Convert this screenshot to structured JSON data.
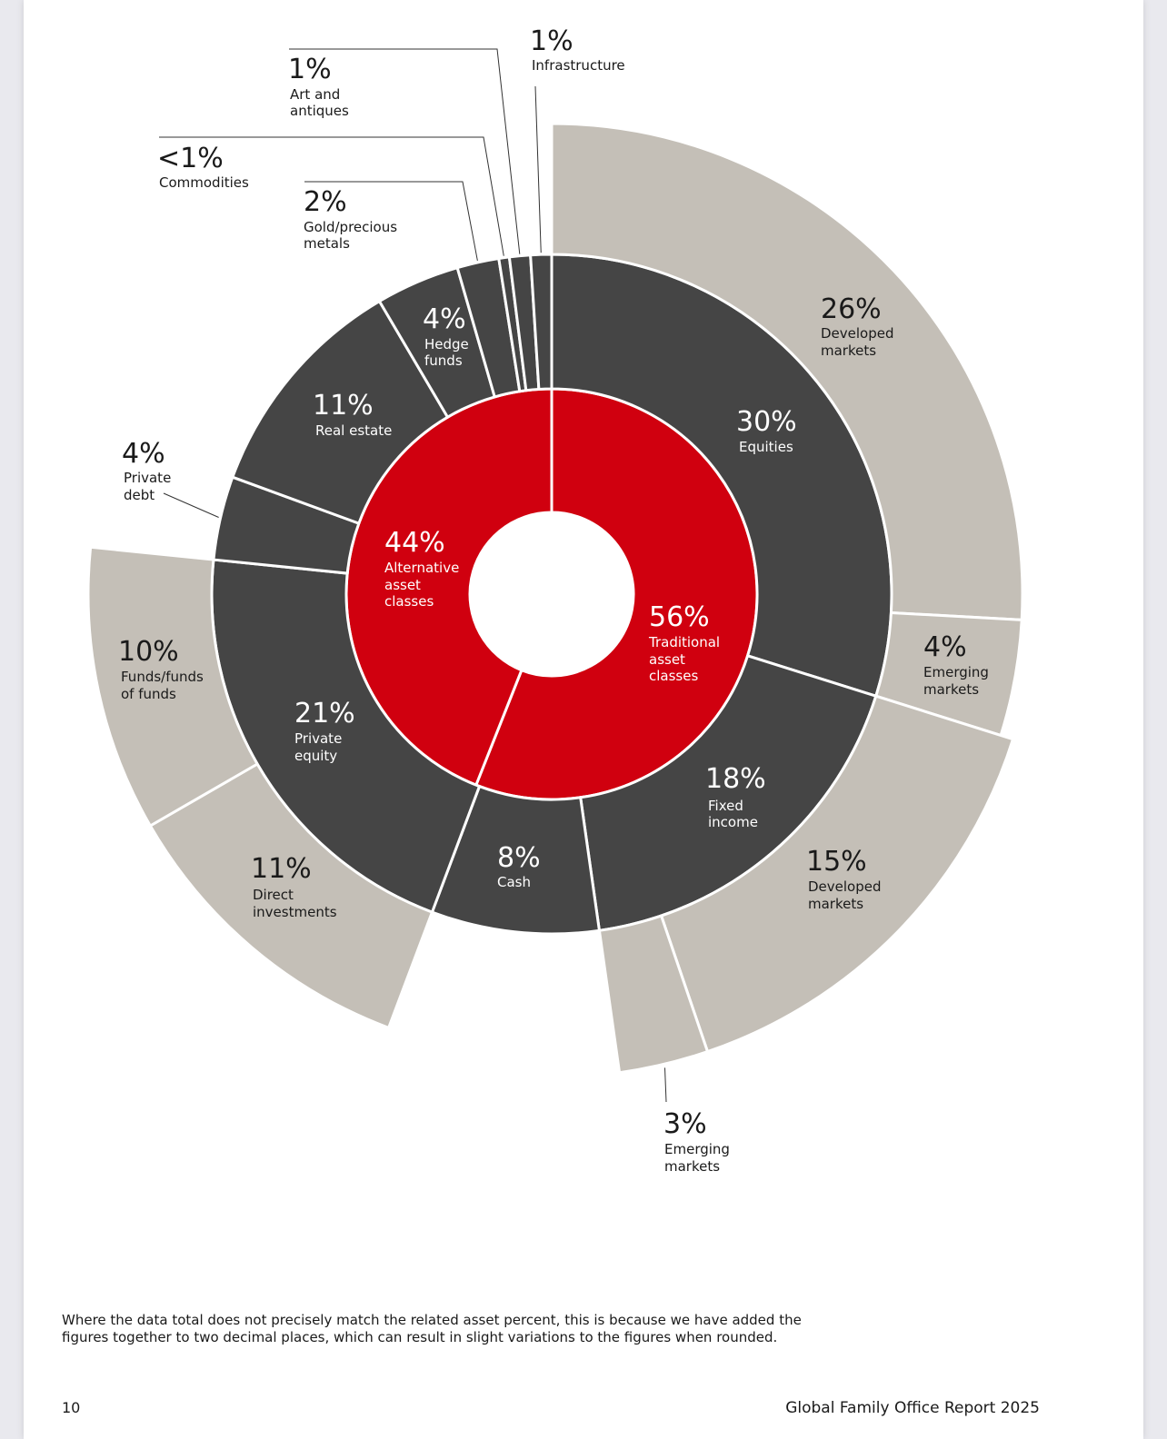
{
  "colors": {
    "center": "#d0000f",
    "ring": "#454545",
    "outer": "#c4bfb7",
    "separator": "#ffffff",
    "leader": "#333333"
  },
  "chart_data": {
    "type": "sunburst",
    "inner": [
      {
        "id": "trad",
        "label": "Traditional asset classes",
        "pct": "56%",
        "value": 56
      },
      {
        "id": "alt",
        "label": "Alternative asset classes",
        "pct": "44%",
        "value": 44
      }
    ],
    "middle": [
      {
        "id": "equities",
        "parent": "trad",
        "label": "Equities",
        "pct": "30%",
        "value": 30
      },
      {
        "id": "fixed",
        "parent": "trad",
        "label": "Fixed income",
        "pct": "18%",
        "value": 18
      },
      {
        "id": "cash",
        "parent": "trad",
        "label": "Cash",
        "pct": "8%",
        "value": 8
      },
      {
        "id": "pe",
        "parent": "alt",
        "label": "Private equity",
        "pct": "21%",
        "value": 21
      },
      {
        "id": "debt",
        "parent": "alt",
        "label": "Private debt",
        "pct": "4%",
        "value": 4
      },
      {
        "id": "re",
        "parent": "alt",
        "label": "Real estate",
        "pct": "11%",
        "value": 11
      },
      {
        "id": "hedge",
        "parent": "alt",
        "label": "Hedge funds",
        "pct": "4%",
        "value": 4
      },
      {
        "id": "gold",
        "parent": "alt",
        "label": "Gold/precious metals",
        "pct": "2%",
        "value": 2
      },
      {
        "id": "comm",
        "parent": "alt",
        "label": "Commodities",
        "pct": "<1%",
        "value": 0.5
      },
      {
        "id": "art",
        "parent": "alt",
        "label": "Art and antiques",
        "pct": "1%",
        "value": 1
      },
      {
        "id": "infra",
        "parent": "alt",
        "label": "Infrastructure",
        "pct": "1%",
        "value": 1
      }
    ],
    "outer": [
      {
        "parent": "equities",
        "label": "Developed markets",
        "pct": "26%",
        "value": 26
      },
      {
        "parent": "equities",
        "label": "Emerging markets",
        "pct": "4%",
        "value": 4
      },
      {
        "parent": "fixed",
        "label": "Developed markets",
        "pct": "15%",
        "value": 15
      },
      {
        "parent": "fixed",
        "label": "Emerging markets",
        "pct": "3%",
        "value": 3
      },
      {
        "parent": "pe",
        "label": "Direct investments",
        "pct": "11%",
        "value": 11
      },
      {
        "parent": "pe",
        "label": "Funds/funds of funds",
        "pct": "10%",
        "value": 10
      }
    ]
  },
  "text": {
    "trad_pct": "56%",
    "trad_l1": "Traditional",
    "trad_l2": "asset",
    "trad_l3": "classes",
    "alt_pct": "44%",
    "alt_l1": "Alternative",
    "alt_l2": "asset",
    "alt_l3": "classes",
    "equities_pct": "30%",
    "equities_l1": "Equities",
    "fixed_pct": "18%",
    "fixed_l1": "Fixed",
    "fixed_l2": "income",
    "cash_pct": "8%",
    "cash_l1": "Cash",
    "pe_pct": "21%",
    "pe_l1": "Private",
    "pe_l2": "equity",
    "re_pct": "11%",
    "re_l1": "Real estate",
    "hedge_pct": "4%",
    "hedge_l1": "Hedge",
    "hedge_l2": "funds",
    "debt_pct": "4%",
    "debt_l1": "Private",
    "debt_l2": "debt",
    "gold_pct": "2%",
    "gold_l1": "Gold/precious",
    "gold_l2": "metals",
    "comm_pct": "<1%",
    "comm_l1": "Commodities",
    "art_pct": "1%",
    "art_l1": "Art and",
    "art_l2": "antiques",
    "infra_pct": "1%",
    "infra_l1": "Infrastructure",
    "eq_dev_pct": "26%",
    "eq_dev_l1": "Developed",
    "eq_dev_l2": "markets",
    "eq_em_pct": "4%",
    "eq_em_l1": "Emerging",
    "eq_em_l2": "markets",
    "fi_dev_pct": "15%",
    "fi_dev_l1": "Developed",
    "fi_dev_l2": "markets",
    "fi_em_pct": "3%",
    "fi_em_l1": "Emerging",
    "fi_em_l2": "markets",
    "pe_dir_pct": "11%",
    "pe_dir_l1": "Direct",
    "pe_dir_l2": "investments",
    "pe_fund_pct": "10%",
    "pe_fund_l1": "Funds/funds",
    "pe_fund_l2": "of funds"
  },
  "footnote": "Where the data total does not precisely match the related asset percent, this is because we have added the figures together to two decimal places, which can result in slight variations to the figures when rounded.",
  "page_number": "10",
  "report_title": "Global Family Office Report 2025"
}
